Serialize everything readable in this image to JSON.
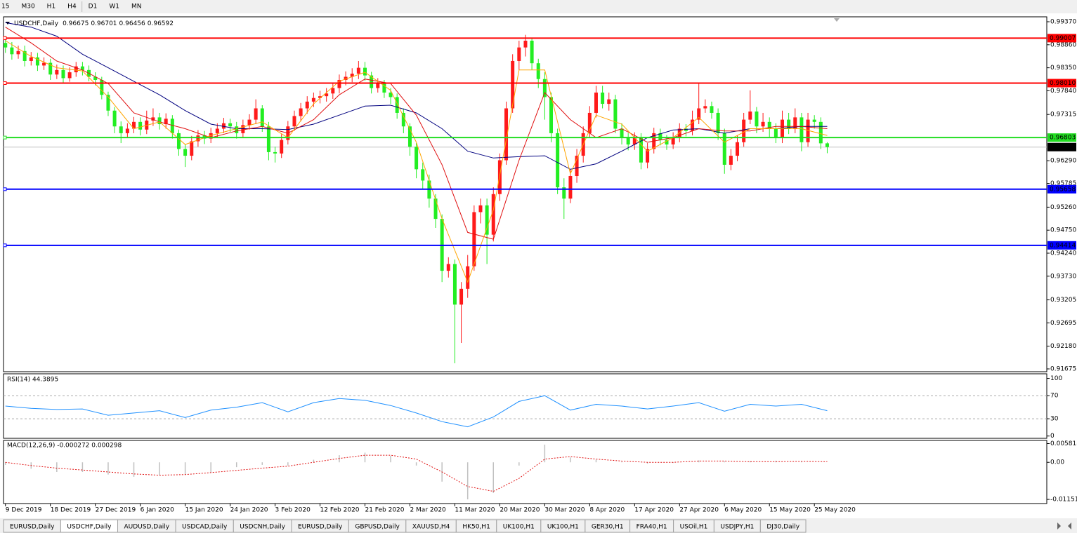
{
  "toolbar": [
    "15",
    "M30",
    "H1",
    "H4",
    "D1",
    "W1",
    "MN"
  ],
  "tabs": [
    "EURUSD,Daily",
    "USDCHF,Daily",
    "AUDUSD,Daily",
    "USDCAD,Daily",
    "USDCNH,Daily",
    "EURUSD,Daily",
    "GBPUSD,Daily",
    "XAUUSD,H4",
    "HK50,H1",
    "UK100,H1",
    "UK100,H1",
    "GER30,H1",
    "FRA40,H1",
    "USOil,H1",
    "USDJPY,H1",
    "DJ30,Daily"
  ],
  "active_tab": 1,
  "chart_data": [
    {
      "type": "candlestick",
      "title": "USDCHF,Daily",
      "header_values": [
        0.96675,
        0.96701,
        0.96456,
        0.96592
      ],
      "up_color": "#ff1a1a",
      "down_color": "#22ee22",
      "xlim": [
        -0.3,
        162.2
      ],
      "ylim": [
        0.91613,
        0.99479
      ],
      "yticks": [
        {
          "value": 0.9937,
          "label": "0.99370"
        },
        {
          "value": 0.9886,
          "label": "0.98860"
        },
        {
          "value": 0.9835,
          "label": "0.98350"
        },
        {
          "value": 0.9784,
          "label": "0.97840"
        },
        0.97315,
        {
          "value": 0.9629,
          "label": "0.96290"
        },
        0.95785,
        {
          "value": 0.9526,
          "label": "0.95260"
        },
        {
          "value": 0.9475,
          "label": "0.94750"
        },
        {
          "value": 0.9424,
          "label": "0.94240"
        },
        {
          "value": 0.9373,
          "label": "0.93730"
        },
        0.93205,
        0.92695,
        {
          "value": 0.9218,
          "label": "0.92180"
        },
        0.91675
      ],
      "levels": [
        {
          "value": 0.99007,
          "color": "#ff0000"
        },
        {
          "value": 0.9801,
          "label": "0.98010",
          "color": "#ff0000"
        },
        {
          "value": 0.96803,
          "color": "#22dd22"
        },
        {
          "value": 0.95658,
          "color": "#0000ff"
        },
        {
          "value": 0.94414,
          "color": "#0000ff"
        }
      ],
      "bid": 0.96592,
      "categories": [
        "9 Dec 2019",
        null,
        null,
        null,
        null,
        null,
        null,
        "18 Dec 2019",
        null,
        null,
        null,
        null,
        null,
        null,
        "27 Dec 2019",
        null,
        null,
        null,
        null,
        null,
        null,
        "6 Jan 2020",
        null,
        null,
        null,
        null,
        null,
        null,
        "15 Jan 2020",
        null,
        null,
        null,
        null,
        null,
        null,
        "24 Jan 2020",
        null,
        null,
        null,
        null,
        null,
        null,
        "3 Feb 2020",
        null,
        null,
        null,
        null,
        null,
        null,
        "12 Feb 2020",
        null,
        null,
        null,
        null,
        null,
        null,
        "21 Feb 2020",
        null,
        null,
        null,
        null,
        null,
        null,
        "2 Mar 2020",
        null,
        null,
        null,
        null,
        null,
        null,
        "11 Mar 2020",
        null,
        null,
        null,
        null,
        null,
        null,
        "20 Mar 2020",
        null,
        null,
        null,
        null,
        null,
        null,
        "30 Mar 2020",
        null,
        null,
        null,
        null,
        null,
        null,
        "8 Apr 2020",
        null,
        null,
        null,
        null,
        null,
        null,
        "17 Apr 2020",
        null,
        null,
        null,
        null,
        null,
        null,
        "27 Apr 2020",
        null,
        null,
        null,
        null,
        null,
        null,
        "6 May 2020",
        null,
        null,
        null,
        null,
        null,
        null,
        "15 May 2020",
        null,
        null,
        null,
        null,
        null,
        null,
        "25 May 2020",
        null,
        null
      ],
      "open": [
        0.989,
        0.988,
        0.9865,
        0.9872,
        0.985,
        0.9858,
        0.984,
        0.9846,
        0.982,
        0.983,
        0.9812,
        0.9825,
        0.9838,
        0.983,
        0.9815,
        0.9808,
        0.9775,
        0.974,
        0.9705,
        0.969,
        0.97,
        0.9715,
        0.9698,
        0.9718,
        0.9725,
        0.971,
        0.9722,
        0.969,
        0.9655,
        0.964,
        0.9672,
        0.9685,
        0.9678,
        0.969,
        0.97,
        0.9712,
        0.9705,
        0.969,
        0.9708,
        0.972,
        0.9745,
        0.9705,
        0.9648,
        0.9645,
        0.9675,
        0.9705,
        0.9728,
        0.9745,
        0.976,
        0.9768,
        0.9772,
        0.9778,
        0.979,
        0.9808,
        0.9815,
        0.9822,
        0.9835,
        0.9818,
        0.979,
        0.98,
        0.978,
        0.977,
        0.9735,
        0.9705,
        0.966,
        0.961,
        0.9585,
        0.9545,
        0.95,
        0.9385,
        0.94,
        0.931,
        0.9345,
        0.9395,
        0.9515,
        0.953,
        0.9465,
        0.9555,
        0.963,
        0.9745,
        0.985,
        0.988,
        0.9895,
        0.9845,
        0.981,
        0.977,
        0.969,
        0.957,
        0.9545,
        0.9595,
        0.964,
        0.969,
        0.9735,
        0.978,
        0.9755,
        0.9765,
        0.97,
        0.968,
        0.9665,
        0.968,
        0.9625,
        0.9655,
        0.969,
        0.9675,
        0.9665,
        0.968,
        0.97,
        0.9695,
        0.972,
        0.9745,
        0.975,
        0.9735,
        0.969,
        0.962,
        0.964,
        0.967,
        0.972,
        0.9738,
        0.9705,
        0.9715,
        0.97,
        0.968,
        0.972,
        0.97,
        0.9725,
        0.967,
        0.972,
        0.9715,
        0.96675
      ],
      "high": [
        0.9905,
        0.9892,
        0.9884,
        0.9884,
        0.987,
        0.9868,
        0.9858,
        0.9855,
        0.9842,
        0.984,
        0.9836,
        0.9848,
        0.9848,
        0.984,
        0.9825,
        0.9815,
        0.9782,
        0.9748,
        0.9716,
        0.9712,
        0.9726,
        0.9725,
        0.974,
        0.9745,
        0.9735,
        0.9734,
        0.973,
        0.9698,
        0.9665,
        0.9684,
        0.9697,
        0.9695,
        0.9702,
        0.9712,
        0.9724,
        0.9722,
        0.9715,
        0.972,
        0.9732,
        0.9765,
        0.9752,
        0.9715,
        0.966,
        0.9688,
        0.9717,
        0.974,
        0.9757,
        0.9772,
        0.978,
        0.9784,
        0.979,
        0.9802,
        0.982,
        0.9827,
        0.9834,
        0.985,
        0.9848,
        0.9826,
        0.9812,
        0.9808,
        0.979,
        0.9778,
        0.9745,
        0.9712,
        0.9668,
        0.9625,
        0.9598,
        0.9555,
        0.951,
        0.9415,
        0.941,
        0.936,
        0.942,
        0.953,
        0.9545,
        0.9545,
        0.957,
        0.9645,
        0.976,
        0.9865,
        0.9895,
        0.9908,
        0.99,
        0.9855,
        0.9825,
        0.978,
        0.97,
        0.959,
        0.961,
        0.9655,
        0.9705,
        0.975,
        0.9795,
        0.9795,
        0.978,
        0.9775,
        0.9712,
        0.969,
        0.9692,
        0.969,
        0.9668,
        0.9702,
        0.97,
        0.9686,
        0.9692,
        0.9712,
        0.971,
        0.974,
        0.98,
        0.9765,
        0.976,
        0.9745,
        0.97,
        0.9655,
        0.9685,
        0.9735,
        0.9785,
        0.9748,
        0.9735,
        0.9725,
        0.9712,
        0.974,
        0.9735,
        0.9745,
        0.9735,
        0.9735,
        0.973,
        0.9725,
        0.96701
      ],
      "low": [
        0.9868,
        0.9853,
        0.9855,
        0.9838,
        0.984,
        0.9828,
        0.983,
        0.9808,
        0.981,
        0.98,
        0.9804,
        0.9815,
        0.9818,
        0.9805,
        0.9796,
        0.9765,
        0.9728,
        0.969,
        0.9668,
        0.968,
        0.969,
        0.9685,
        0.9688,
        0.9706,
        0.9698,
        0.97,
        0.9678,
        0.964,
        0.9615,
        0.963,
        0.966,
        0.9666,
        0.9668,
        0.968,
        0.969,
        0.9693,
        0.9678,
        0.968,
        0.9698,
        0.971,
        0.9693,
        0.963,
        0.9625,
        0.9635,
        0.9665,
        0.9695,
        0.9716,
        0.9733,
        0.9748,
        0.9756,
        0.976,
        0.9766,
        0.9778,
        0.9796,
        0.9803,
        0.981,
        0.9806,
        0.9778,
        0.978,
        0.9768,
        0.9755,
        0.9722,
        0.969,
        0.964,
        0.959,
        0.9565,
        0.9525,
        0.948,
        0.936,
        0.937,
        0.918,
        0.9225,
        0.9325,
        0.9385,
        0.949,
        0.94,
        0.945,
        0.954,
        0.962,
        0.9735,
        0.983,
        0.986,
        0.983,
        0.979,
        0.972,
        0.967,
        0.9555,
        0.95,
        0.9535,
        0.958,
        0.9625,
        0.968,
        0.9725,
        0.9745,
        0.974,
        0.969,
        0.9665,
        0.9652,
        0.9653,
        0.961,
        0.9612,
        0.9645,
        0.9663,
        0.9653,
        0.9655,
        0.967,
        0.9683,
        0.9685,
        0.971,
        0.9735,
        0.9722,
        0.9675,
        0.96,
        0.9608,
        0.9628,
        0.966,
        0.971,
        0.969,
        0.9693,
        0.968,
        0.9668,
        0.9668,
        0.9688,
        0.969,
        0.965,
        0.966,
        0.97,
        0.9655,
        0.96456
      ],
      "close": [
        0.988,
        0.9865,
        0.9872,
        0.985,
        0.9858,
        0.984,
        0.9846,
        0.982,
        0.983,
        0.9812,
        0.9825,
        0.9838,
        0.983,
        0.9815,
        0.9808,
        0.9775,
        0.974,
        0.9705,
        0.969,
        0.97,
        0.9715,
        0.9698,
        0.9718,
        0.9725,
        0.971,
        0.9722,
        0.969,
        0.9655,
        0.964,
        0.9672,
        0.9685,
        0.9678,
        0.969,
        0.97,
        0.9712,
        0.9705,
        0.969,
        0.9708,
        0.972,
        0.9745,
        0.9705,
        0.9648,
        0.9645,
        0.9675,
        0.9705,
        0.9728,
        0.9745,
        0.976,
        0.9768,
        0.9772,
        0.9778,
        0.979,
        0.9808,
        0.9815,
        0.9822,
        0.9835,
        0.9818,
        0.979,
        0.98,
        0.978,
        0.977,
        0.9735,
        0.9705,
        0.966,
        0.961,
        0.9585,
        0.9545,
        0.95,
        0.9385,
        0.94,
        0.931,
        0.9345,
        0.9395,
        0.9515,
        0.953,
        0.9465,
        0.9555,
        0.963,
        0.9745,
        0.985,
        0.988,
        0.9895,
        0.9845,
        0.981,
        0.977,
        0.969,
        0.957,
        0.9545,
        0.9595,
        0.964,
        0.969,
        0.9735,
        0.978,
        0.9755,
        0.9765,
        0.97,
        0.968,
        0.9665,
        0.968,
        0.9625,
        0.9655,
        0.969,
        0.9675,
        0.9665,
        0.968,
        0.97,
        0.9695,
        0.972,
        0.9745,
        0.975,
        0.9735,
        0.969,
        0.962,
        0.964,
        0.967,
        0.972,
        0.9738,
        0.9705,
        0.9715,
        0.97,
        0.968,
        0.972,
        0.97,
        0.9725,
        0.967,
        0.972,
        0.9715,
        0.96675,
        0.96592
      ],
      "overlays": {
        "x": [
          0,
          4,
          8,
          12,
          16,
          20,
          24,
          28,
          32,
          36,
          40,
          44,
          48,
          52,
          56,
          60,
          64,
          68,
          72,
          76,
          80,
          84,
          88,
          92,
          96,
          100,
          104,
          108,
          112,
          116,
          120,
          124,
          128
        ],
        "series": [
          {
            "color": "#00007f",
            "values": [
              0.9935,
              0.9925,
              0.9905,
              0.9865,
              0.9835,
              0.9805,
              0.9775,
              0.974,
              0.971,
              0.97,
              0.97,
              0.9698,
              0.971,
              0.973,
              0.975,
              0.9752,
              0.9735,
              0.97,
              0.965,
              0.9635,
              0.9638,
              0.964,
              0.961,
              0.9622,
              0.965,
              0.968,
              0.9697,
              0.97,
              0.969,
              0.97,
              0.97,
              0.9705,
              0.9705
            ]
          },
          {
            "color": "#e01010",
            "values": [
              0.9925,
              0.989,
              0.985,
              0.983,
              0.98,
              0.9735,
              0.9715,
              0.97,
              0.968,
              0.9695,
              0.9705,
              0.969,
              0.972,
              0.9775,
              0.981,
              0.98,
              0.973,
              0.962,
              0.947,
              0.9455,
              0.963,
              0.978,
              0.972,
              0.968,
              0.97,
              0.967,
              0.968,
              0.97,
              0.9695,
              0.9695,
              0.9705,
              0.9705,
              0.97
            ]
          },
          {
            "color": "#ffa500",
            "values": [
              0.9895,
              0.986,
              0.9835,
              0.9828,
              0.977,
              0.97,
              0.9715,
              0.9665,
              0.9685,
              0.97,
              0.9715,
              0.968,
              0.9755,
              0.9805,
              0.9825,
              0.9785,
              0.967,
              0.95,
              0.936,
              0.952,
              0.983,
              0.983,
              0.96,
              0.973,
              0.971,
              0.965,
              0.968,
              0.9725,
              0.967,
              0.97,
              0.97,
              0.97,
              0.9685
            ]
          }
        ]
      }
    },
    {
      "type": "line",
      "title": "RSI(14) 44.3895",
      "color": "#1e90ff",
      "xlim": [
        -0.3,
        162.2
      ],
      "ylim": [
        -4,
        108
      ],
      "yticks": [
        100,
        70,
        30,
        0
      ],
      "levels": [
        70,
        30
      ],
      "x": [
        0,
        4,
        8,
        12,
        16,
        20,
        24,
        28,
        32,
        36,
        40,
        44,
        48,
        52,
        56,
        60,
        64,
        68,
        72,
        76,
        80,
        84,
        88,
        92,
        96,
        100,
        104,
        108,
        112,
        116,
        120,
        124,
        128
      ],
      "values": [
        52,
        48,
        46,
        47,
        36,
        40,
        44,
        32,
        45,
        50,
        58,
        42,
        58,
        65,
        62,
        53,
        40,
        25,
        16,
        33,
        60,
        70,
        45,
        55,
        52,
        47,
        52,
        58,
        43,
        55,
        52,
        55,
        44
      ]
    },
    {
      "type": "macd",
      "title": "MACD(12,26,9) -0.000272 0.000298",
      "histogram_color": "#c0c0c0",
      "signal_color": "#e01010",
      "xlim": [
        -0.3,
        162.2
      ],
      "ylim": [
        -0.0128,
        0.0068
      ],
      "yticks": [
        0.005818,
        {
          "value": 0,
          "label": "0.00"
        },
        -0.011514
      ],
      "x": [
        0,
        4,
        8,
        12,
        16,
        20,
        24,
        28,
        32,
        36,
        40,
        44,
        48,
        52,
        56,
        60,
        64,
        68,
        72,
        76,
        80,
        84,
        88,
        92,
        96,
        100,
        104,
        108,
        112,
        116,
        120,
        124,
        128
      ],
      "histogram": [
        -0.0008,
        -0.002,
        -0.003,
        -0.003,
        -0.0038,
        -0.0045,
        -0.004,
        -0.0038,
        -0.0032,
        -0.0015,
        -0.0008,
        -0.001,
        0.0008,
        0.0022,
        0.003,
        0.002,
        -0.001,
        -0.006,
        -0.0115,
        -0.0095,
        -0.001,
        0.0055,
        0.0015,
        0.0008,
        0.0002,
        -0.0004,
        -0.0002,
        0.0006,
        0.0003,
        0.0004,
        0.0005,
        0.0003,
        0
      ],
      "signal": [
        0,
        -0.001,
        -0.0018,
        -0.0024,
        -0.003,
        -0.0036,
        -0.004,
        -0.0038,
        -0.0032,
        -0.0025,
        -0.0018,
        -0.0012,
        0,
        0.0012,
        0.0022,
        0.0022,
        0.001,
        -0.003,
        -0.0075,
        -0.009,
        -0.005,
        0.001,
        0.0018,
        0.001,
        0.0004,
        0,
        0,
        0.0004,
        0.0004,
        0.0002,
        0.0002,
        0.0003,
        0.0002
      ]
    }
  ]
}
